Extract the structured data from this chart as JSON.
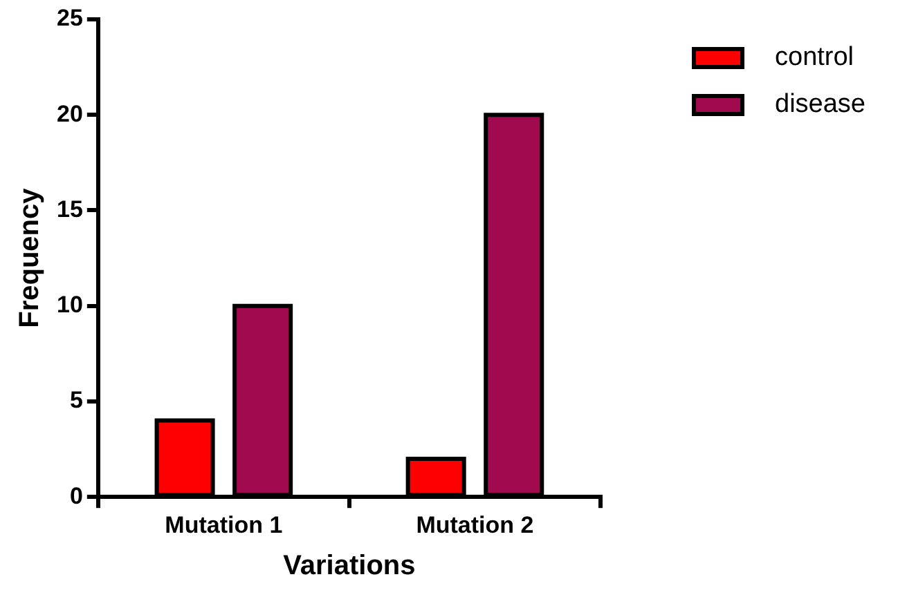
{
  "chart_data": {
    "type": "bar",
    "xlabel": "Variations",
    "ylabel": "Frequency",
    "categories": [
      "Mutation 1",
      "Mutation 2"
    ],
    "series": [
      {
        "name": "control",
        "color": "#ff0000",
        "values": [
          4,
          2
        ]
      },
      {
        "name": "disease",
        "color": "#a10a4e",
        "values": [
          10,
          20
        ]
      }
    ],
    "ylim": [
      0,
      25
    ],
    "yticks": [
      0,
      5,
      10,
      15,
      20,
      25
    ],
    "grid": false,
    "legend": "top right"
  }
}
